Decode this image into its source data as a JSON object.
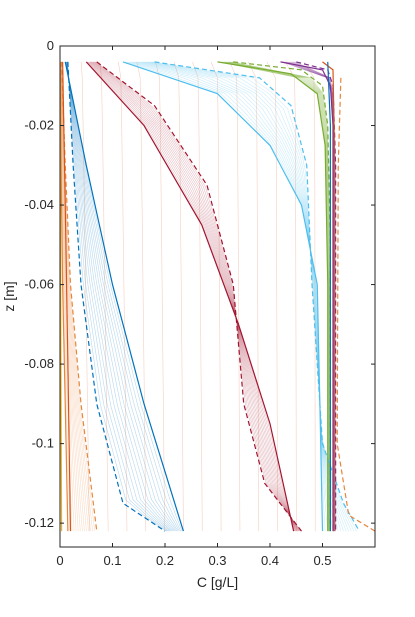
{
  "chart_data": {
    "type": "line",
    "title": "",
    "xlabel": "C [g/L]",
    "ylabel": "z [m]",
    "xlim": [
      0,
      0.6
    ],
    "ylim": [
      -0.126,
      0
    ],
    "xticks": [
      0,
      0.1,
      0.2,
      0.3,
      0.4,
      0.5
    ],
    "xtick_labels": [
      "0",
      "0.1",
      "0.2",
      "0.3",
      "0.4",
      "0.5"
    ],
    "yticks": [
      0,
      -0.02,
      -0.04,
      -0.06,
      -0.08,
      -0.1,
      -0.12
    ],
    "ytick_labels": [
      "0",
      "-0.02",
      "-0.04",
      "-0.06",
      "-0.08",
      "-0.1",
      "-0.12"
    ],
    "grid": false,
    "legend": "none",
    "depth_range": [
      -0.004,
      -0.122
    ],
    "series": [
      {
        "color": "#e8863a",
        "style": "solid",
        "points": [
          [
            0.0,
            -0.004
          ],
          [
            0.002,
            -0.03
          ],
          [
            0.005,
            -0.06
          ],
          [
            0.01,
            -0.09
          ],
          [
            0.015,
            -0.122
          ]
        ]
      },
      {
        "color": "#e8863a",
        "style": "dashed",
        "points": [
          [
            0.003,
            -0.004
          ],
          [
            0.01,
            -0.03
          ],
          [
            0.02,
            -0.06
          ],
          [
            0.04,
            -0.09
          ],
          [
            0.07,
            -0.122
          ]
        ]
      },
      {
        "color": "#d9541a",
        "style": "solid",
        "points": [
          [
            0.005,
            -0.004
          ],
          [
            0.01,
            -0.04
          ],
          [
            0.015,
            -0.08
          ],
          [
            0.02,
            -0.122
          ]
        ]
      },
      {
        "color": "#edb120",
        "style": "solid",
        "points": [
          [
            0.0,
            -0.004
          ],
          [
            0.001,
            -0.05
          ],
          [
            0.002,
            -0.09
          ],
          [
            0.003,
            -0.122
          ]
        ]
      },
      {
        "color": "#0072bd",
        "style": "solid",
        "points": [
          [
            0.01,
            -0.004
          ],
          [
            0.05,
            -0.03
          ],
          [
            0.1,
            -0.06
          ],
          [
            0.16,
            -0.09
          ],
          [
            0.235,
            -0.122
          ]
        ]
      },
      {
        "color": "#0072bd",
        "style": "dashed",
        "points": [
          [
            0.015,
            -0.004
          ],
          [
            0.025,
            -0.03
          ],
          [
            0.04,
            -0.06
          ],
          [
            0.07,
            -0.09
          ],
          [
            0.12,
            -0.115
          ],
          [
            0.2,
            -0.122
          ]
        ]
      },
      {
        "color": "#a2142f",
        "style": "solid",
        "points": [
          [
            0.05,
            -0.004
          ],
          [
            0.16,
            -0.02
          ],
          [
            0.27,
            -0.045
          ],
          [
            0.34,
            -0.07
          ],
          [
            0.4,
            -0.095
          ],
          [
            0.445,
            -0.122
          ]
        ]
      },
      {
        "color": "#a2142f",
        "style": "dashed",
        "points": [
          [
            0.07,
            -0.004
          ],
          [
            0.18,
            -0.015
          ],
          [
            0.28,
            -0.035
          ],
          [
            0.33,
            -0.06
          ],
          [
            0.35,
            -0.09
          ],
          [
            0.39,
            -0.11
          ],
          [
            0.46,
            -0.122
          ]
        ]
      },
      {
        "color": "#4dbeee",
        "style": "solid",
        "points": [
          [
            0.12,
            -0.004
          ],
          [
            0.3,
            -0.012
          ],
          [
            0.4,
            -0.025
          ],
          [
            0.46,
            -0.04
          ],
          [
            0.49,
            -0.06
          ],
          [
            0.495,
            -0.09
          ],
          [
            0.5,
            -0.122
          ]
        ]
      },
      {
        "color": "#4dbeee",
        "style": "dashed",
        "points": [
          [
            0.18,
            -0.004
          ],
          [
            0.38,
            -0.008
          ],
          [
            0.44,
            -0.015
          ],
          [
            0.47,
            -0.03
          ],
          [
            0.48,
            -0.06
          ],
          [
            0.5,
            -0.1
          ],
          [
            0.54,
            -0.115
          ],
          [
            0.57,
            -0.122
          ]
        ]
      },
      {
        "color": "#77ac30",
        "style": "solid",
        "points": [
          [
            0.3,
            -0.004
          ],
          [
            0.44,
            -0.007
          ],
          [
            0.49,
            -0.012
          ],
          [
            0.505,
            -0.025
          ],
          [
            0.51,
            -0.06
          ],
          [
            0.51,
            -0.122
          ]
        ]
      },
      {
        "color": "#77ac30",
        "style": "dashed",
        "points": [
          [
            0.33,
            -0.004
          ],
          [
            0.46,
            -0.006
          ],
          [
            0.5,
            -0.01
          ],
          [
            0.51,
            -0.02
          ],
          [
            0.515,
            -0.05
          ],
          [
            0.515,
            -0.122
          ]
        ]
      },
      {
        "color": "#7e2f8e",
        "style": "solid",
        "points": [
          [
            0.42,
            -0.004
          ],
          [
            0.5,
            -0.006
          ],
          [
            0.515,
            -0.01
          ],
          [
            0.52,
            -0.02
          ],
          [
            0.52,
            -0.122
          ]
        ]
      },
      {
        "color": "#7e2f8e",
        "style": "dashed",
        "points": [
          [
            0.45,
            -0.004
          ],
          [
            0.51,
            -0.006
          ],
          [
            0.52,
            -0.01
          ],
          [
            0.525,
            -0.03
          ],
          [
            0.525,
            -0.122
          ]
        ]
      },
      {
        "color": "#d9541a",
        "style": "solid",
        "points": [
          [
            0.5,
            -0.004
          ],
          [
            0.52,
            -0.006
          ],
          [
            0.522,
            -0.02
          ],
          [
            0.522,
            -0.122
          ]
        ]
      },
      {
        "color": "#e8863a",
        "style": "dashed",
        "points": [
          [
            0.535,
            -0.008
          ],
          [
            0.53,
            -0.03
          ],
          [
            0.528,
            -0.1
          ],
          [
            0.55,
            -0.118
          ],
          [
            0.6,
            -0.122
          ]
        ]
      },
      {
        "color": "#0072bd",
        "style": "solid",
        "points": [
          [
            0.51,
            -0.004
          ],
          [
            0.515,
            -0.02
          ],
          [
            0.515,
            -0.122
          ]
        ]
      }
    ]
  }
}
